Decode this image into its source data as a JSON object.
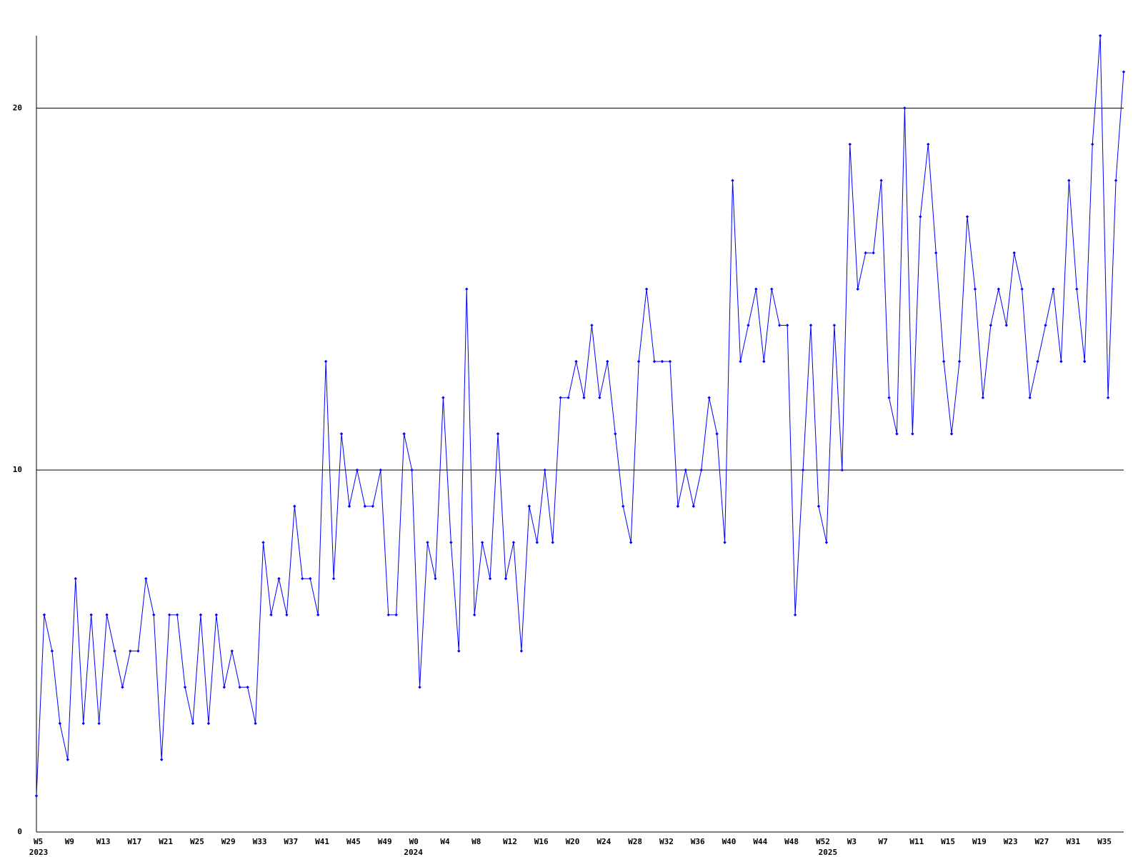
{
  "chart_data": {
    "type": "line",
    "color": "#0000ff",
    "grid": true,
    "ylim": [
      0,
      22
    ],
    "yticks": [
      0,
      10,
      20
    ],
    "categories": [
      "W5",
      null,
      null,
      null,
      "W9",
      null,
      null,
      null,
      "W13",
      null,
      null,
      null,
      "W17",
      null,
      null,
      null,
      "W21",
      null,
      null,
      null,
      "W25",
      null,
      null,
      null,
      "W29",
      null,
      null,
      null,
      "W33",
      null,
      null,
      null,
      "W37",
      null,
      null,
      null,
      "W41",
      null,
      null,
      null,
      "W45",
      null,
      null,
      null,
      "W49",
      null,
      null,
      null,
      "W0",
      null,
      null,
      null,
      "W4",
      null,
      null,
      null,
      "W8",
      null,
      null,
      null,
      "W12",
      null,
      null,
      null,
      "W16",
      null,
      null,
      null,
      "W20",
      null,
      null,
      null,
      "W24",
      null,
      null,
      null,
      "W28",
      null,
      null,
      null,
      "W32",
      null,
      null,
      null,
      "W36",
      null,
      null,
      null,
      "W40",
      null,
      null,
      null,
      "W44",
      null,
      null,
      null,
      "W48",
      null,
      null,
      null,
      "W52",
      null,
      null,
      null,
      "W3",
      null,
      null,
      null,
      "W7",
      null,
      null,
      null,
      "W11",
      null,
      null,
      null,
      "W15",
      null,
      null,
      null,
      "W19",
      null,
      null,
      null,
      "W23",
      null,
      null,
      null,
      "W27",
      null,
      null,
      null,
      "W31",
      null,
      null,
      null,
      "W35",
      null,
      null,
      null
    ],
    "year_labels": [
      "2023",
      null,
      null,
      null,
      null,
      null,
      null,
      null,
      null,
      null,
      null,
      null,
      null,
      null,
      null,
      null,
      null,
      null,
      null,
      null,
      null,
      null,
      null,
      null,
      null,
      null,
      null,
      null,
      null,
      null,
      null,
      null,
      null,
      null,
      null,
      null,
      null,
      null,
      null,
      null,
      null,
      null,
      null,
      null,
      null,
      null,
      null,
      null,
      "2024",
      null,
      null,
      null,
      null,
      null,
      null,
      null,
      null,
      null,
      null,
      null,
      null,
      null,
      null,
      null,
      null,
      null,
      null,
      null,
      null,
      null,
      null,
      null,
      null,
      null,
      null,
      null,
      null,
      null,
      null,
      null,
      null,
      null,
      null,
      null,
      null,
      null,
      null,
      null,
      null,
      null,
      null,
      null,
      null,
      null,
      null,
      null,
      null,
      null,
      null,
      null,
      null,
      "2025",
      null,
      null,
      null,
      null,
      null,
      null,
      null,
      null,
      null,
      null,
      null,
      null,
      null,
      null,
      null,
      null,
      null,
      null,
      null,
      null,
      null,
      null,
      null,
      null,
      null,
      null,
      null,
      null,
      null,
      null,
      null,
      null,
      null,
      null,
      null,
      null,
      null,
      null
    ],
    "values": [
      1,
      6,
      5,
      3,
      2,
      7,
      3,
      6,
      3,
      6,
      5,
      4,
      5,
      5,
      7,
      6,
      2,
      6,
      6,
      4,
      3,
      6,
      3,
      6,
      4,
      5,
      4,
      4,
      3,
      8,
      6,
      7,
      6,
      9,
      7,
      7,
      6,
      13,
      7,
      11,
      9,
      10,
      9,
      9,
      10,
      6,
      6,
      11,
      10,
      4,
      8,
      7,
      12,
      8,
      5,
      15,
      6,
      8,
      7,
      11,
      7,
      8,
      5,
      9,
      8,
      10,
      8,
      12,
      12,
      13,
      12,
      14,
      12,
      13,
      11,
      9,
      8,
      13,
      15,
      13,
      13,
      13,
      9,
      10,
      9,
      10,
      12,
      11,
      8,
      18,
      13,
      14,
      15,
      13,
      15,
      14,
      14,
      6,
      10,
      14,
      9,
      8,
      14,
      10,
      19,
      15,
      16,
      16,
      18,
      12,
      11,
      20,
      11,
      17,
      19,
      16,
      13,
      11,
      13,
      17,
      15,
      12,
      14,
      15,
      14,
      16,
      15,
      12,
      13,
      14,
      15,
      13,
      18,
      15,
      13,
      19,
      22,
      12,
      18,
      21
    ]
  }
}
